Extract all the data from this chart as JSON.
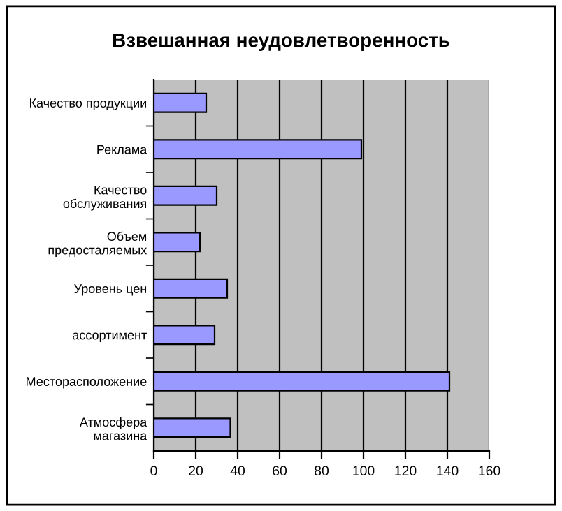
{
  "chart_data": {
    "type": "bar",
    "orientation": "horizontal",
    "title": "Взвешанная неудовлетворенность",
    "categories": [
      "Качество продукции",
      "Реклама",
      "Качество\nобслуживания",
      "Объем\nпредосталяемых",
      "Уровень цен",
      "ассортимент",
      "Месторасположение",
      "Атмосфера\nмагазина"
    ],
    "values": [
      25,
      99,
      30,
      22,
      35,
      29,
      141,
      36.5
    ],
    "color": "#9999ff",
    "xlim": [
      0,
      160
    ],
    "xticks": [
      0,
      20,
      40,
      60,
      80,
      100,
      120,
      140,
      160
    ],
    "grid": "x"
  }
}
